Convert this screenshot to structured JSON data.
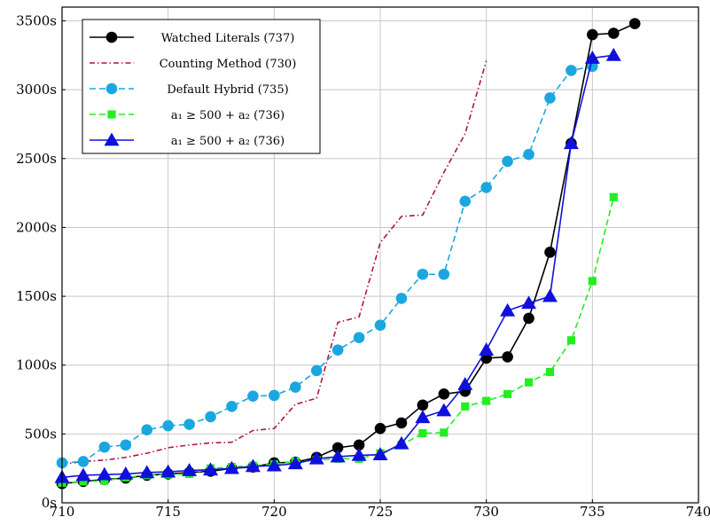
{
  "chart_data": {
    "type": "line",
    "xlim": [
      710,
      740
    ],
    "ylim": [
      0,
      3600
    ],
    "grid": true,
    "legend_position": "top-left",
    "x_ticks": [
      "710",
      "715",
      "720",
      "725",
      "730",
      "735",
      "740"
    ],
    "y_ticks": [
      "0s",
      "500s",
      "1000s",
      "1500s",
      "2000s",
      "2500s",
      "3000s",
      "3500s"
    ],
    "series": [
      {
        "name": "Watched Literals (737)",
        "color": "#000000",
        "dash": "solid",
        "marker": "circle",
        "points": [
          [
            710,
            140
          ],
          [
            711,
            155
          ],
          [
            712,
            170
          ],
          [
            713,
            180
          ],
          [
            714,
            200
          ],
          [
            715,
            210
          ],
          [
            716,
            220
          ],
          [
            717,
            230
          ],
          [
            718,
            250
          ],
          [
            719,
            260
          ],
          [
            720,
            290
          ],
          [
            721,
            295
          ],
          [
            722,
            330
          ],
          [
            723,
            400
          ],
          [
            724,
            420
          ],
          [
            725,
            540
          ],
          [
            726,
            580
          ],
          [
            727,
            710
          ],
          [
            728,
            790
          ],
          [
            729,
            810
          ],
          [
            730,
            1050
          ],
          [
            731,
            1060
          ],
          [
            732,
            1340
          ],
          [
            733,
            1820
          ],
          [
            734,
            2610
          ],
          [
            735,
            3400
          ],
          [
            736,
            3410
          ],
          [
            737,
            3480
          ]
        ]
      },
      {
        "name": "Counting Method (730)",
        "color": "#b0124a",
        "dash": "dashdot",
        "marker": "none",
        "points": [
          [
            710,
            280
          ],
          [
            711,
            300
          ],
          [
            712,
            310
          ],
          [
            713,
            330
          ],
          [
            714,
            360
          ],
          [
            715,
            400
          ],
          [
            716,
            420
          ],
          [
            717,
            435
          ],
          [
            718,
            440
          ],
          [
            719,
            525
          ],
          [
            720,
            540
          ],
          [
            721,
            715
          ],
          [
            722,
            760
          ],
          [
            723,
            1310
          ],
          [
            724,
            1350
          ],
          [
            725,
            1890
          ],
          [
            726,
            2080
          ],
          [
            727,
            2090
          ],
          [
            728,
            2400
          ],
          [
            729,
            2680
          ],
          [
            730,
            3210
          ]
        ]
      },
      {
        "name": "Default Hybrid (735)",
        "color": "#1aa7e0",
        "dash": "dashed",
        "marker": "circle",
        "points": [
          [
            710,
            290
          ],
          [
            711,
            300
          ],
          [
            712,
            405
          ],
          [
            713,
            420
          ],
          [
            714,
            530
          ],
          [
            715,
            560
          ],
          [
            716,
            570
          ],
          [
            717,
            625
          ],
          [
            718,
            700
          ],
          [
            719,
            775
          ],
          [
            720,
            780
          ],
          [
            721,
            840
          ],
          [
            722,
            960
          ],
          [
            723,
            1110
          ],
          [
            724,
            1200
          ],
          [
            725,
            1290
          ],
          [
            726,
            1485
          ],
          [
            727,
            1660
          ],
          [
            728,
            1660
          ],
          [
            729,
            2190
          ],
          [
            730,
            2290
          ],
          [
            731,
            2480
          ],
          [
            732,
            2530
          ],
          [
            733,
            2940
          ],
          [
            734,
            3140
          ],
          [
            735,
            3170
          ]
        ]
      },
      {
        "name": "a₁ ≥ 500 + a₂ (736)",
        "color": "#22ee22",
        "dash": "dashed",
        "marker": "square",
        "points": [
          [
            710,
            145
          ],
          [
            711,
            155
          ],
          [
            712,
            160
          ],
          [
            713,
            185
          ],
          [
            714,
            200
          ],
          [
            715,
            205
          ],
          [
            716,
            210
          ],
          [
            717,
            250
          ],
          [
            718,
            260
          ],
          [
            719,
            270
          ],
          [
            720,
            280
          ],
          [
            721,
            300
          ],
          [
            722,
            310
          ],
          [
            723,
            320
          ],
          [
            724,
            320
          ],
          [
            725,
            360
          ],
          [
            726,
            420
          ],
          [
            727,
            505
          ],
          [
            728,
            510
          ],
          [
            729,
            700
          ],
          [
            730,
            740
          ],
          [
            731,
            790
          ],
          [
            732,
            875
          ],
          [
            733,
            950
          ],
          [
            734,
            1180
          ],
          [
            735,
            1610
          ],
          [
            736,
            2220
          ]
        ]
      },
      {
        "name": "a₁ ≥ 500 + a₂ (736)",
        "color": "#1010dd",
        "dash": "solid",
        "marker": "triangle",
        "points": [
          [
            710,
            185
          ],
          [
            711,
            200
          ],
          [
            712,
            205
          ],
          [
            713,
            210
          ],
          [
            714,
            220
          ],
          [
            715,
            225
          ],
          [
            716,
            235
          ],
          [
            717,
            240
          ],
          [
            718,
            250
          ],
          [
            719,
            265
          ],
          [
            720,
            270
          ],
          [
            721,
            285
          ],
          [
            722,
            320
          ],
          [
            723,
            335
          ],
          [
            724,
            345
          ],
          [
            725,
            350
          ],
          [
            726,
            430
          ],
          [
            727,
            620
          ],
          [
            728,
            670
          ],
          [
            729,
            860
          ],
          [
            730,
            1110
          ],
          [
            731,
            1395
          ],
          [
            732,
            1450
          ],
          [
            733,
            1500
          ],
          [
            734,
            2610
          ],
          [
            735,
            3230
          ],
          [
            736,
            3250
          ]
        ]
      }
    ]
  }
}
